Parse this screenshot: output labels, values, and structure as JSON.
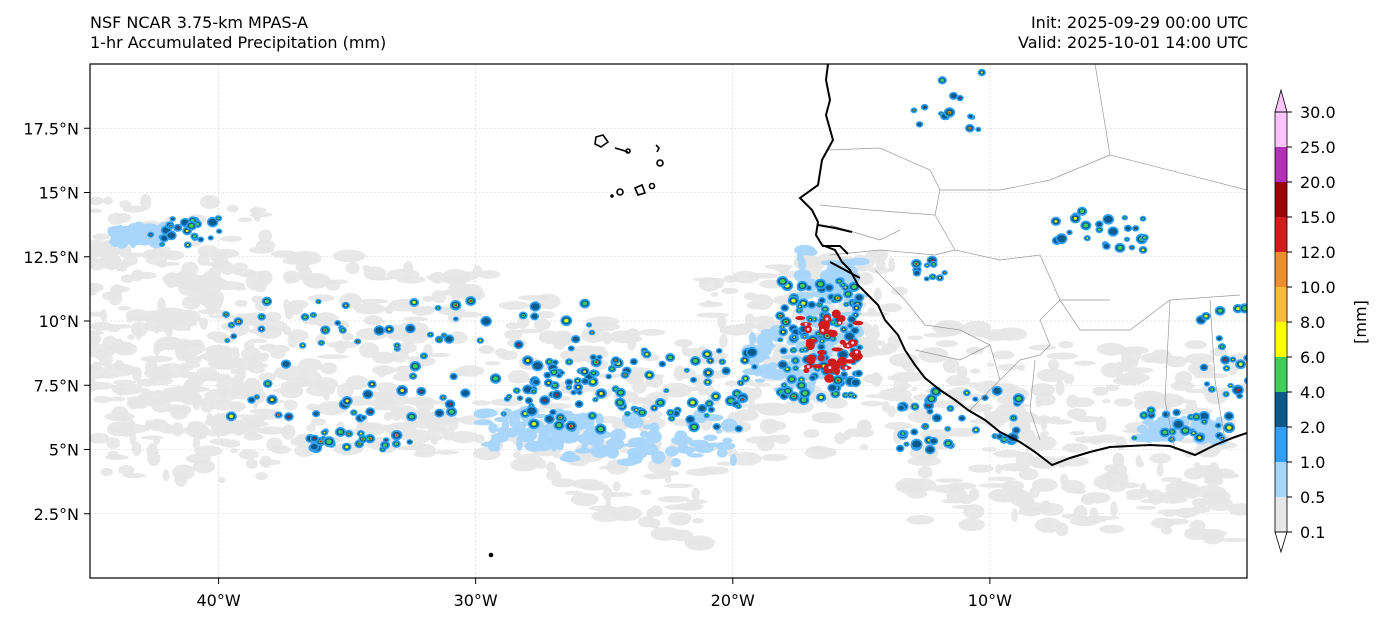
{
  "header": {
    "title_line1": "NSF NCAR 3.75-km MPAS-A",
    "title_line2": "1-hr Accumulated Precipitation (mm)",
    "init": "Init: 2025-09-29 00:00 UTC",
    "valid": "Valid: 2025-10-01 14:00 UTC"
  },
  "map": {
    "lon_range": [
      -45,
      0
    ],
    "lat_range": [
      0,
      20
    ],
    "x_ticks": [
      {
        "lon": -40,
        "label": "40°W"
      },
      {
        "lon": -30,
        "label": "30°W"
      },
      {
        "lon": -20,
        "label": "20°W"
      },
      {
        "lon": -10,
        "label": "10°W"
      }
    ],
    "y_ticks": [
      {
        "lat": 2.5,
        "label": "2.5°N"
      },
      {
        "lat": 5,
        "label": "5°N"
      },
      {
        "lat": 7.5,
        "label": "7.5°N"
      },
      {
        "lat": 10,
        "label": "10°N"
      },
      {
        "lat": 12.5,
        "label": "12.5°N"
      },
      {
        "lat": 15,
        "label": "15°N"
      },
      {
        "lat": 17.5,
        "label": "17.5°N"
      }
    ],
    "grid": true
  },
  "colorbar": {
    "unit_label": "[mm]",
    "levels": [
      "0.1",
      "0.5",
      "1.0",
      "2.0",
      "4.0",
      "6.0",
      "8.0",
      "10.0",
      "12.0",
      "15.0",
      "20.0",
      "25.0",
      "30.0"
    ],
    "colors": [
      "#e6e6e6",
      "#a7d5fb",
      "#2f9ff5",
      "#0a5a8c",
      "#3fce5a",
      "#ffff00",
      "#f9b93a",
      "#ed8f2c",
      "#cf1d1b",
      "#9a0505",
      "#b330b8",
      "#fbc4fb"
    ]
  }
}
